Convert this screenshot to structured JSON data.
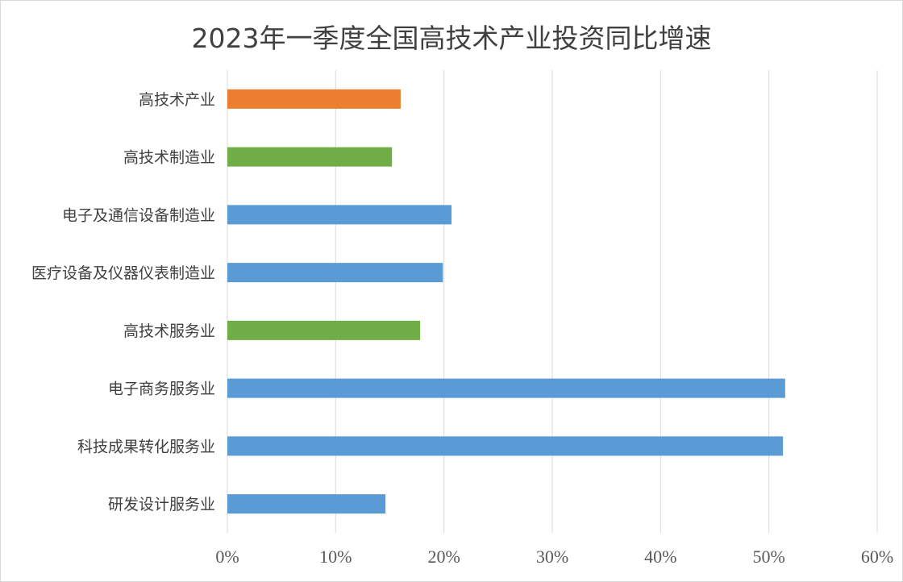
{
  "chart_data": {
    "type": "bar",
    "orientation": "horizontal",
    "title": "2023年一季度全国高技术产业投资同比增速",
    "xlabel": "",
    "ylabel": "",
    "xlim": [
      0,
      60
    ],
    "x_ticks": [
      "0%",
      "10%",
      "20%",
      "30%",
      "40%",
      "50%",
      "60%"
    ],
    "grid": "vertical",
    "categories": [
      "高技术产业",
      "高技术制造业",
      "电子及通信设备制造业",
      "医疗设备及仪器仪表制造业",
      "高技术服务业",
      "电子商务服务业",
      "科技成果转化服务业",
      "研发设计服务业"
    ],
    "values": [
      16.0,
      15.2,
      20.7,
      19.9,
      17.8,
      51.5,
      51.3,
      14.6
    ],
    "colors": [
      "#ED7D31",
      "#70AD47",
      "#5B9BD5",
      "#5B9BD5",
      "#70AD47",
      "#5B9BD5",
      "#5B9BD5",
      "#5B9BD5"
    ],
    "grid_color": "#d9d9d9"
  }
}
